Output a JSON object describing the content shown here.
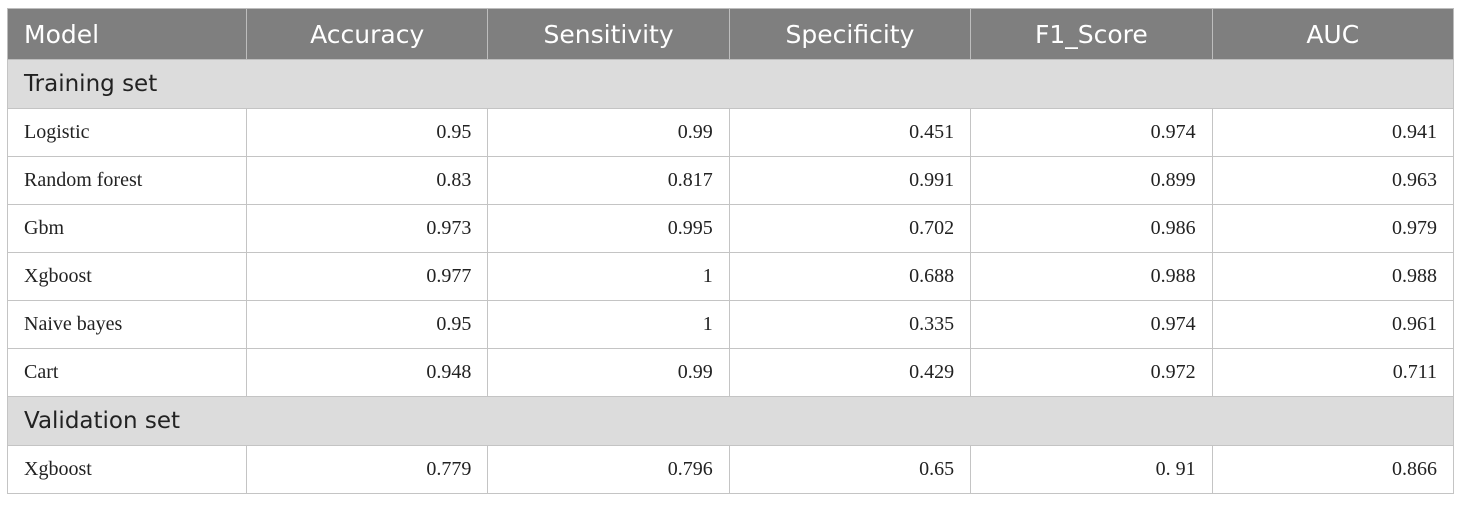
{
  "table": {
    "headers": [
      "Model",
      "Accuracy",
      "Sensitivity",
      "Specificity",
      "F1_Score",
      "AUC"
    ],
    "sections": [
      {
        "label": "Training set",
        "rows": [
          [
            "Logistic",
            "0.95",
            "0.99",
            "0.451",
            "0.974",
            "0.941"
          ],
          [
            "Random forest",
            "0.83",
            "0.817",
            "0.991",
            "0.899",
            "0.963"
          ],
          [
            "Gbm",
            "0.973",
            "0.995",
            "0.702",
            "0.986",
            "0.979"
          ],
          [
            "Xgboost",
            "0.977",
            "1",
            "0.688",
            "0.988",
            "0.988"
          ],
          [
            "Naive bayes",
            "0.95",
            "1",
            "0.335",
            "0.974",
            "0.961"
          ],
          [
            "Cart",
            "0.948",
            "0.99",
            "0.429",
            "0.972",
            "0.711"
          ]
        ]
      },
      {
        "label": "Validation set",
        "rows": [
          [
            "Xgboost",
            "0.779",
            "0.796",
            "0.65",
            "0. 91",
            "0.866"
          ]
        ]
      }
    ]
  }
}
